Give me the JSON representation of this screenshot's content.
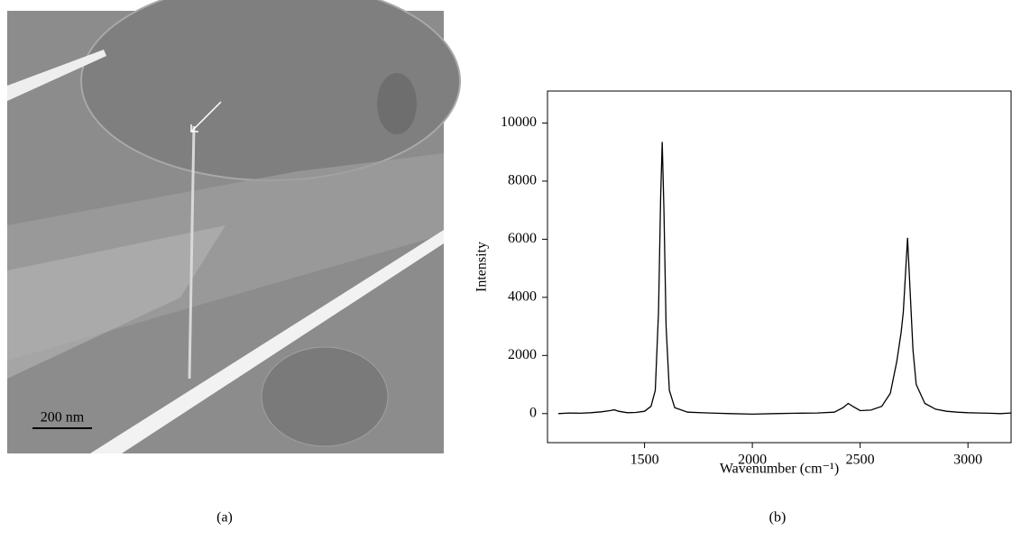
{
  "panel_a": {
    "scale_bar": "200 nm",
    "caption": "(a)"
  },
  "chart_data": {
    "type": "line",
    "caption": "(b)",
    "x_label": "Wavenumber (cm⁻¹)",
    "y_label": "Intensity",
    "xlim": [
      1050,
      3200
    ],
    "ylim": [
      -1000,
      11100
    ],
    "xticks": [
      1500,
      2000,
      2500,
      3000
    ],
    "yticks": [
      0,
      2000,
      4000,
      6000,
      8000,
      10000
    ],
    "color": "#000000",
    "x": [
      1100,
      1150,
      1200,
      1250,
      1300,
      1340,
      1360,
      1380,
      1420,
      1460,
      1500,
      1530,
      1550,
      1565,
      1575,
      1582,
      1590,
      1600,
      1615,
      1640,
      1700,
      1800,
      1900,
      2000,
      2100,
      2200,
      2300,
      2380,
      2420,
      2445,
      2465,
      2500,
      2550,
      2600,
      2640,
      2670,
      2690,
      2700,
      2710,
      2720,
      2730,
      2745,
      2760,
      2800,
      2850,
      2900,
      2950,
      3000,
      3050,
      3100,
      3150,
      3200
    ],
    "values": [
      0,
      20,
      10,
      30,
      60,
      100,
      130,
      80,
      30,
      40,
      80,
      250,
      800,
      3500,
      7500,
      9350,
      7000,
      3000,
      800,
      200,
      50,
      20,
      0,
      -20,
      0,
      10,
      20,
      50,
      200,
      350,
      250,
      100,
      120,
      250,
      700,
      1800,
      2800,
      3500,
      4800,
      6050,
      4500,
      2200,
      1000,
      350,
      150,
      80,
      50,
      30,
      20,
      10,
      0,
      20
    ]
  }
}
